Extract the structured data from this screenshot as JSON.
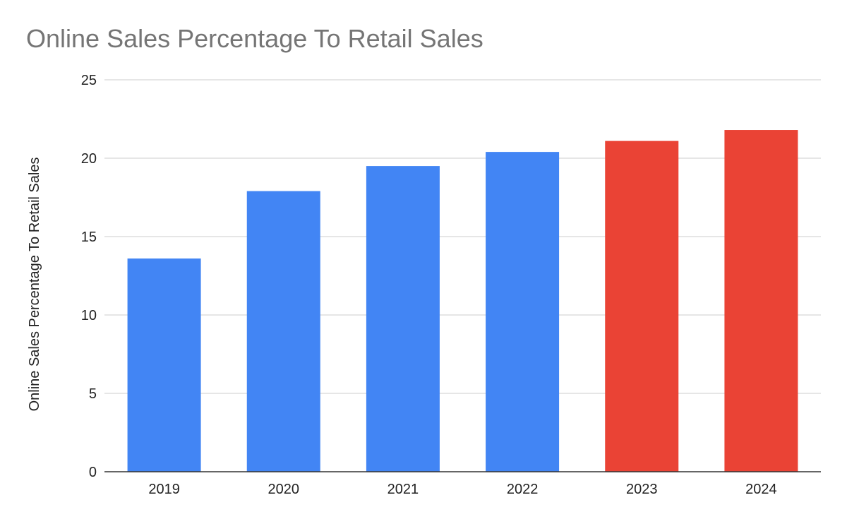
{
  "chart_data": {
    "type": "bar",
    "title": "Online Sales Percentage To Retail Sales",
    "xlabel": "",
    "ylabel": "Online Sales Percentage To Retail Sales",
    "categories": [
      "2019",
      "2020",
      "2021",
      "2022",
      "2023",
      "2024"
    ],
    "values": [
      13.6,
      17.9,
      19.5,
      20.4,
      21.1,
      21.8
    ],
    "bar_colors": [
      "#4285f4",
      "#4285f4",
      "#4285f4",
      "#4285f4",
      "#ea4335",
      "#ea4335"
    ],
    "ylim": [
      0,
      25
    ],
    "yticks": [
      0,
      5,
      10,
      15,
      20,
      25
    ],
    "grid": true,
    "legend": "none"
  }
}
